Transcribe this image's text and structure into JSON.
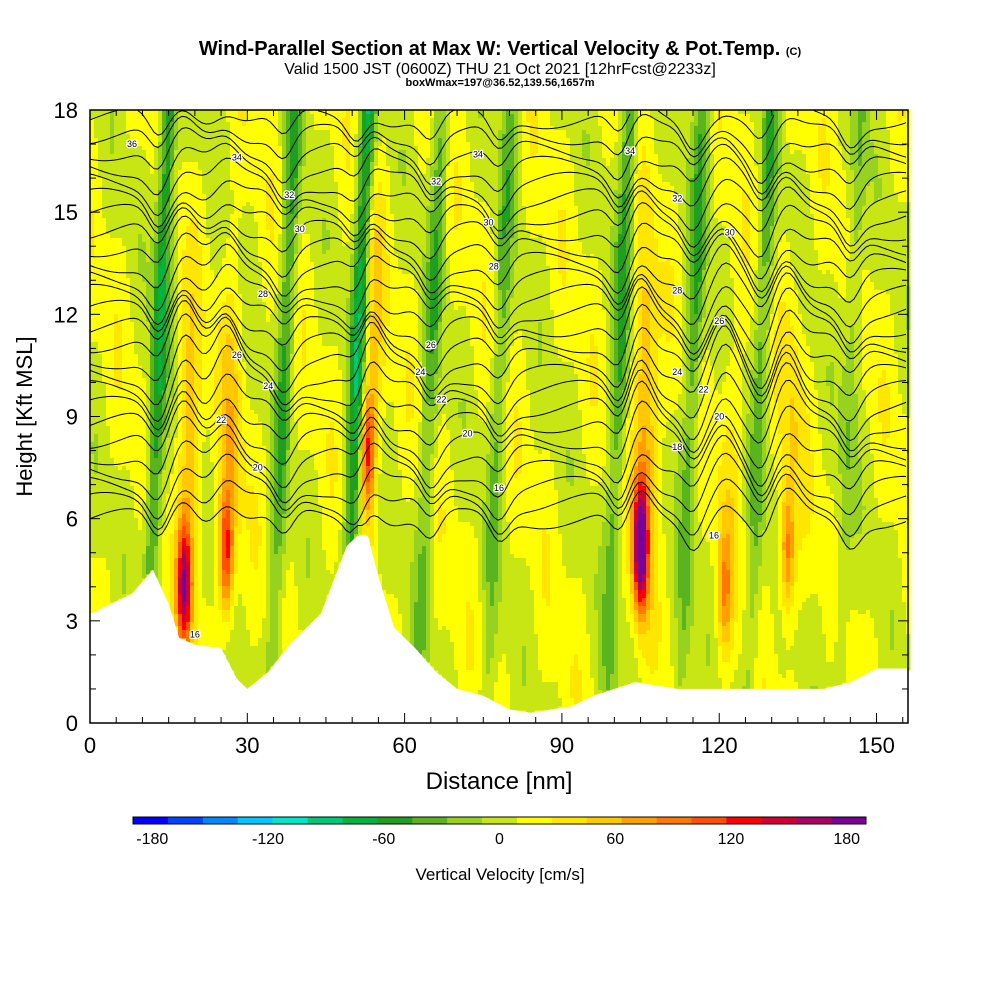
{
  "header": {
    "title": "Wind-Parallel Section at Max W: Vertical Velocity & Pot.Temp.",
    "title_mark": "(C)",
    "subtitle": "Valid 1500 JST (0600Z) THU 21 Oct 2021 [12hrFcst@2233z]",
    "subtitle2": "boxWmax=197@36.52,139.56,1657m"
  },
  "chart_data": {
    "type": "heatmap",
    "xlabel": "Distance [nm]",
    "ylabel": "Height [Kft MSL]",
    "xlim": [
      0,
      156
    ],
    "ylim": [
      0,
      18
    ],
    "x_ticks": [
      0,
      30,
      60,
      90,
      120,
      150
    ],
    "y_ticks": [
      0,
      3,
      6,
      9,
      12,
      15,
      18
    ],
    "colorbar": {
      "label": "Vertical Velocity [cm/s]",
      "range": [
        -190,
        190
      ],
      "tick_values": [
        -180,
        -120,
        -60,
        0,
        60,
        120,
        180
      ],
      "colors": [
        "#0000ff",
        "#0044ff",
        "#0088ff",
        "#00c8ff",
        "#00e6c8",
        "#00c87a",
        "#00b43c",
        "#1ea01e",
        "#5ab41e",
        "#96d21e",
        "#c8e614",
        "#ffff00",
        "#ffe600",
        "#ffc800",
        "#ffa000",
        "#ff7800",
        "#ff5000",
        "#ff0000",
        "#d20032",
        "#aa0064",
        "#780096"
      ]
    },
    "updraft_cores": [
      {
        "x": 18,
        "z": 4.0,
        "w": 140
      },
      {
        "x": 26,
        "z": 5.0,
        "w": 110
      },
      {
        "x": 53,
        "z": 8.0,
        "w": 110
      },
      {
        "x": 105,
        "z": 5.2,
        "w": 197
      },
      {
        "x": 121,
        "z": 3.8,
        "w": 60
      },
      {
        "x": 133,
        "z": 5.0,
        "w": 80
      }
    ],
    "downdraft_lanes": [
      {
        "x": 13,
        "w": -80
      },
      {
        "x": 37,
        "w": -55
      },
      {
        "x": 51,
        "w": -90
      },
      {
        "x": 65,
        "w": -45
      },
      {
        "x": 78,
        "w": -40
      },
      {
        "x": 101,
        "w": -60
      },
      {
        "x": 115,
        "w": -55
      },
      {
        "x": 128,
        "w": -45
      },
      {
        "x": 145,
        "w": -35
      }
    ],
    "terrain": {
      "x": [
        0,
        8,
        12,
        15,
        17,
        20,
        25,
        28,
        30,
        34,
        38,
        44,
        49,
        51,
        53,
        55,
        58,
        62,
        66,
        70,
        75,
        80,
        84,
        88,
        92,
        96,
        100,
        104,
        108,
        112,
        118,
        122,
        128,
        134,
        140,
        145,
        150,
        156
      ],
      "z": [
        3.2,
        3.8,
        4.5,
        3.5,
        2.5,
        2.3,
        2.2,
        1.3,
        1.0,
        1.5,
        2.3,
        3.2,
        5.2,
        5.5,
        5.5,
        4.3,
        2.8,
        2.2,
        1.5,
        1.0,
        0.8,
        0.4,
        0.3,
        0.4,
        0.5,
        0.8,
        1.0,
        1.2,
        1.1,
        1.0,
        1.0,
        1.0,
        1.0,
        1.0,
        1.0,
        1.2,
        1.6,
        1.6
      ]
    },
    "theta_contours": {
      "label": "Pot.Temp.",
      "levels": [
        16,
        18,
        20,
        22,
        24,
        26,
        28,
        30,
        32,
        34,
        36
      ],
      "labels": [
        {
          "text": "16",
          "x": 20,
          "z": 2.6
        },
        {
          "text": "20",
          "x": 32,
          "z": 7.5
        },
        {
          "text": "22",
          "x": 25,
          "z": 8.9
        },
        {
          "text": "24",
          "x": 34,
          "z": 9.9
        },
        {
          "text": "26",
          "x": 28,
          "z": 10.8
        },
        {
          "text": "28",
          "x": 33,
          "z": 12.6
        },
        {
          "text": "30",
          "x": 40,
          "z": 14.5
        },
        {
          "text": "32",
          "x": 38,
          "z": 15.5
        },
        {
          "text": "34",
          "x": 28,
          "z": 16.6
        },
        {
          "text": "36",
          "x": 8,
          "z": 17.0
        },
        {
          "text": "16",
          "x": 78,
          "z": 6.9
        },
        {
          "text": "20",
          "x": 72,
          "z": 8.5
        },
        {
          "text": "22",
          "x": 67,
          "z": 9.5
        },
        {
          "text": "24",
          "x": 63,
          "z": 10.3
        },
        {
          "text": "26",
          "x": 65,
          "z": 11.1
        },
        {
          "text": "28",
          "x": 77,
          "z": 13.4
        },
        {
          "text": "30",
          "x": 76,
          "z": 14.7
        },
        {
          "text": "32",
          "x": 66,
          "z": 15.9
        },
        {
          "text": "34",
          "x": 74,
          "z": 16.7
        },
        {
          "text": "16",
          "x": 119,
          "z": 5.5
        },
        {
          "text": "18",
          "x": 112,
          "z": 8.1
        },
        {
          "text": "20",
          "x": 120,
          "z": 9.0
        },
        {
          "text": "22",
          "x": 117,
          "z": 9.8
        },
        {
          "text": "24",
          "x": 112,
          "z": 10.3
        },
        {
          "text": "26",
          "x": 120,
          "z": 11.8
        },
        {
          "text": "28",
          "x": 112,
          "z": 12.7
        },
        {
          "text": "30",
          "x": 122,
          "z": 14.4
        },
        {
          "text": "32",
          "x": 112,
          "z": 15.4
        },
        {
          "text": "34",
          "x": 103,
          "z": 16.8
        }
      ]
    }
  }
}
